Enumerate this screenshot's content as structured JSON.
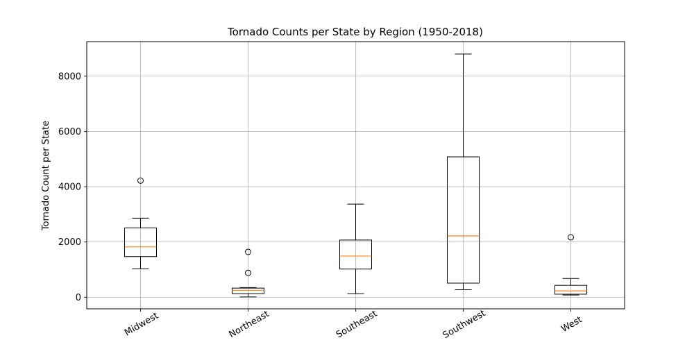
{
  "chart_data": {
    "type": "box",
    "title": "Tornado Counts per State by Region (1950-2018)",
    "xlabel": "",
    "ylabel": "Tornado Count per State",
    "ylim": [
      -420,
      9250
    ],
    "yticks": [
      0,
      2000,
      4000,
      6000,
      8000
    ],
    "grid": true,
    "median_color": "#ff7f0e",
    "categories": [
      "Midwest",
      "Northeast",
      "Southeast",
      "Southwest",
      "West"
    ],
    "boxes": [
      {
        "category": "Midwest",
        "whisker_low": 1030,
        "q1": 1470,
        "median": 1820,
        "q3": 2510,
        "whisker_high": 2860,
        "outliers": [
          4220
        ]
      },
      {
        "category": "Northeast",
        "whisker_low": 10,
        "q1": 130,
        "median": 250,
        "q3": 330,
        "whisker_high": 350,
        "outliers": [
          880,
          1640
        ]
      },
      {
        "category": "Southeast",
        "whisker_low": 130,
        "q1": 1020,
        "median": 1490,
        "q3": 2070,
        "whisker_high": 3370,
        "outliers": []
      },
      {
        "category": "Southwest",
        "whisker_low": 270,
        "q1": 510,
        "median": 2220,
        "q3": 5080,
        "whisker_high": 8800,
        "outliers": []
      },
      {
        "category": "West",
        "whisker_low": 80,
        "q1": 110,
        "median": 230,
        "q3": 430,
        "whisker_high": 680,
        "outliers": [
          2170
        ]
      }
    ]
  }
}
